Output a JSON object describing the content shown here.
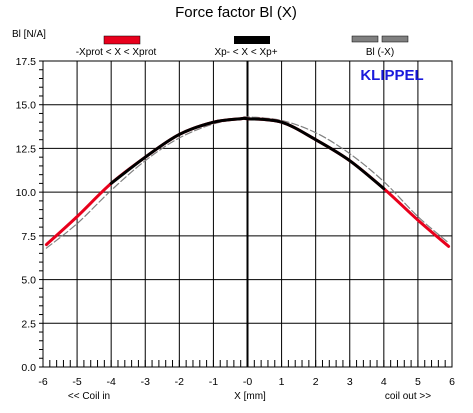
{
  "chart_data": {
    "type": "line",
    "title": "Force factor Bl (X)",
    "ylabel": "Bl [N/A]",
    "xlabel": "X [mm]",
    "xlim": [
      -6,
      6
    ],
    "ylim": [
      0,
      17.5
    ],
    "xticks": [
      -6,
      -5,
      -4,
      -3,
      -2,
      -1,
      0,
      1,
      2,
      3,
      4,
      5,
      6
    ],
    "xtick_labels": [
      "-6",
      "-5",
      "-4",
      "-3",
      "-2",
      "-1",
      "-0",
      "1",
      "2",
      "3",
      "4",
      "5",
      "6"
    ],
    "yticks": [
      0,
      2.5,
      5,
      7.5,
      10,
      12.5,
      15,
      17.5
    ],
    "ytick_labels": [
      "0.0",
      "2.5",
      "5.0",
      "7.5",
      "10.0",
      "12.5",
      "15.0",
      "17.5"
    ],
    "grid": true,
    "legend_position": "top",
    "left_note": "<< Coil in",
    "right_note": "coil out >>",
    "brand": "KLIPPEL",
    "x": [
      -5.9,
      -5.0,
      -4.0,
      -3.0,
      -2.0,
      -1.0,
      -0.2,
      0.0,
      1.0,
      2.0,
      3.0,
      4.0,
      5.0,
      5.9
    ],
    "series": [
      {
        "name": "-Xprot < X < Xprot",
        "color": "#e8001c",
        "values": [
          7.0,
          8.6,
          10.5,
          12.0,
          13.3,
          14.0,
          14.2,
          14.2,
          14.0,
          13.0,
          11.8,
          10.2,
          8.4,
          6.9
        ]
      },
      {
        "name": "Xp- < X < Xp+",
        "color": "#000000",
        "x_range": [
          -4.4,
          4.4
        ],
        "values": [
          null,
          null,
          10.5,
          12.0,
          13.3,
          14.0,
          14.2,
          14.2,
          14.0,
          13.0,
          11.8,
          10.2,
          null,
          null
        ]
      },
      {
        "name": "Bl (-X)",
        "color": "#808080",
        "dashed": true,
        "values": [
          6.8,
          8.2,
          10.1,
          11.8,
          13.1,
          13.9,
          14.2,
          14.3,
          14.1,
          13.4,
          12.2,
          10.6,
          8.6,
          7.1
        ]
      }
    ]
  }
}
